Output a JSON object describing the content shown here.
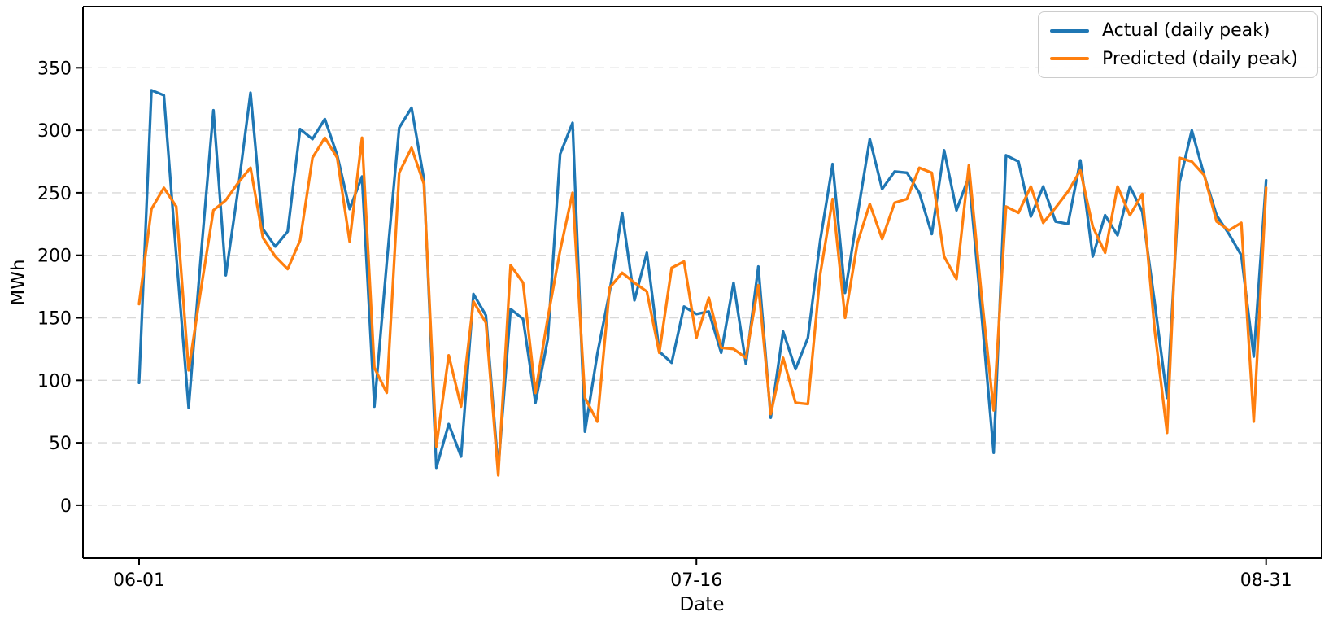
{
  "chart_data": {
    "type": "line",
    "title": "",
    "xlabel": "Date",
    "ylabel": "MWh",
    "x_description": "daily points, day index 0 to 91 (06-01 through 08-31)",
    "xticks": [
      {
        "day": 0,
        "label": "06-01"
      },
      {
        "day": 45,
        "label": "07-16"
      },
      {
        "day": 91,
        "label": "08-31"
      }
    ],
    "yticks": [
      0,
      50,
      100,
      150,
      200,
      250,
      300,
      350
    ],
    "ylim": [
      -42,
      399
    ],
    "grid": "horizontal dashed lines at each 50 MWh",
    "legend_position": "upper right",
    "series": [
      {
        "name": "Actual (daily peak)",
        "color": "#1f77b4",
        "values": [
          98,
          332,
          328,
          200,
          78,
          200,
          316,
          184,
          253,
          330,
          221,
          207,
          219,
          301,
          293,
          309,
          280,
          237,
          263,
          79,
          194,
          302,
          318,
          261,
          30,
          65,
          39,
          169,
          152,
          29,
          157,
          149,
          82,
          133,
          281,
          306,
          59,
          121,
          171,
          234,
          164,
          202,
          123,
          114,
          159,
          153,
          155,
          122,
          178,
          113,
          191,
          70,
          139,
          109,
          134,
          212,
          273,
          170,
          232,
          293,
          253,
          267,
          266,
          250,
          217,
          284,
          236,
          263,
          155,
          42,
          280,
          275,
          231,
          255,
          227,
          225,
          276,
          199,
          232,
          216,
          255,
          235,
          162,
          86,
          258,
          300,
          264,
          232,
          217,
          200,
          119,
          260
        ]
      },
      {
        "name": "Predicted (daily peak)",
        "color": "#ff7f0e",
        "values": [
          161,
          237,
          254,
          239,
          108,
          173,
          236,
          244,
          258,
          270,
          214,
          199,
          189,
          212,
          278,
          294,
          278,
          211,
          294,
          110,
          90,
          266,
          286,
          257,
          47,
          120,
          79,
          163,
          146,
          24,
          192,
          178,
          90,
          150,
          204,
          250,
          86,
          67,
          174,
          186,
          178,
          171,
          122,
          190,
          195,
          134,
          166,
          126,
          125,
          118,
          176,
          73,
          118,
          82,
          81,
          185,
          245,
          150,
          210,
          241,
          213,
          242,
          245,
          270,
          266,
          199,
          181,
          272,
          170,
          76,
          239,
          234,
          255,
          226,
          238,
          251,
          268,
          223,
          202,
          255,
          232,
          249,
          140,
          58,
          278,
          275,
          264,
          227,
          220,
          226,
          67,
          254
        ]
      }
    ]
  }
}
